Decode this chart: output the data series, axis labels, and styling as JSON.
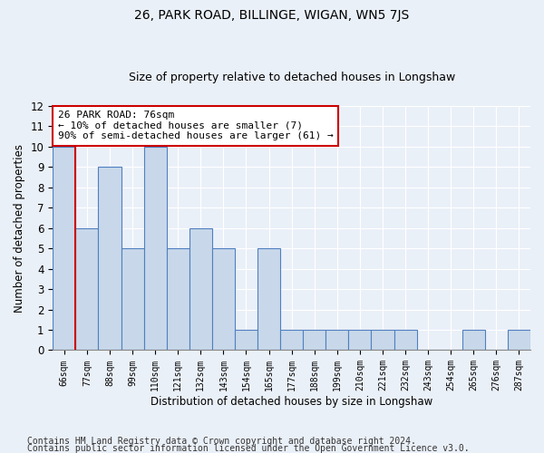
{
  "title1": "26, PARK ROAD, BILLINGE, WIGAN, WN5 7JS",
  "title2": "Size of property relative to detached houses in Longshaw",
  "xlabel": "Distribution of detached houses by size in Longshaw",
  "ylabel": "Number of detached properties",
  "categories": [
    "66sqm",
    "77sqm",
    "88sqm",
    "99sqm",
    "110sqm",
    "121sqm",
    "132sqm",
    "143sqm",
    "154sqm",
    "165sqm",
    "177sqm",
    "188sqm",
    "199sqm",
    "210sqm",
    "221sqm",
    "232sqm",
    "243sqm",
    "254sqm",
    "265sqm",
    "276sqm",
    "287sqm"
  ],
  "values": [
    10,
    6,
    9,
    5,
    10,
    5,
    6,
    5,
    1,
    5,
    1,
    1,
    1,
    1,
    1,
    1,
    0,
    0,
    1,
    0,
    1
  ],
  "bar_color": "#c8d8ea",
  "bar_edge_color": "#5080c0",
  "annotation_text": "26 PARK ROAD: 76sqm\n← 10% of detached houses are smaller (7)\n90% of semi-detached houses are larger (61) →",
  "annotation_box_color": "white",
  "annotation_box_edge_color": "#cc0000",
  "red_line_color": "#cc0000",
  "ylim": [
    0,
    12
  ],
  "yticks": [
    0,
    1,
    2,
    3,
    4,
    5,
    6,
    7,
    8,
    9,
    10,
    11,
    12
  ],
  "footer1": "Contains HM Land Registry data © Crown copyright and database right 2024.",
  "footer2": "Contains public sector information licensed under the Open Government Licence v3.0.",
  "background_color": "#eaf0f8",
  "plot_bg_color": "#eaf0f8",
  "grid_color": "#ffffff",
  "title1_fontsize": 10,
  "title2_fontsize": 9,
  "annotation_fontsize": 8,
  "footer_fontsize": 7
}
